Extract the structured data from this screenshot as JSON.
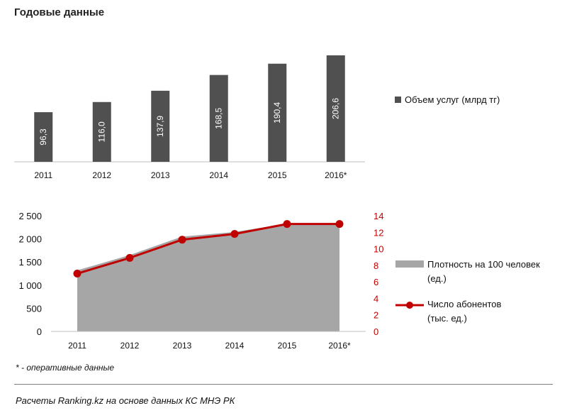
{
  "title": "Годовые данные",
  "colors": {
    "bar": "#505050",
    "area": "#a6a6a6",
    "line": "#c00000",
    "right_axis": "#c00000",
    "axis": "#bfbfbf"
  },
  "chart_data": [
    {
      "type": "bar",
      "categories": [
        "2011",
        "2012",
        "2013",
        "2014",
        "2015",
        "2016*"
      ],
      "series": [
        {
          "name": "Объем услуг (млрд тг)",
          "values": [
            96.3,
            116.0,
            137.9,
            168.5,
            190.4,
            206.6
          ],
          "value_labels": [
            "96,3",
            "116,0",
            "137,9",
            "168,5",
            "190,4",
            "206,6"
          ]
        }
      ],
      "ylim": [
        0,
        230
      ],
      "legend": "right"
    },
    {
      "type": "area",
      "categories": [
        "2011",
        "2012",
        "2013",
        "2014",
        "2015",
        "2016*"
      ],
      "left_axis": {
        "ylim": [
          0,
          2500
        ],
        "ticks": [
          0,
          500,
          1000,
          1500,
          2000,
          2500
        ],
        "tick_labels": [
          "0",
          "500",
          "1 000",
          "1 500",
          "2 000",
          "2 500"
        ]
      },
      "right_axis": {
        "ylim": [
          0,
          14
        ],
        "ticks": [
          0,
          2,
          4,
          6,
          8,
          10,
          12,
          14
        ],
        "tick_labels": [
          "0",
          "2",
          "4",
          "6",
          "8",
          "10",
          "12",
          "14"
        ]
      },
      "series": [
        {
          "name": "Плотность на 100 человек (ед.)",
          "legend_lines": [
            "Плотность на 100 человек",
            "(ед.)"
          ],
          "kind": "area",
          "axis": "left",
          "values": [
            1320,
            1650,
            2050,
            2150,
            2330,
            2330
          ]
        },
        {
          "name": "Число абонентов (тыс. ед.)",
          "legend_lines": [
            "Число абонентов",
            "(тыс. ед.)"
          ],
          "kind": "line",
          "axis": "right",
          "values": [
            7.0,
            8.9,
            11.1,
            11.8,
            13.0,
            13.0
          ]
        }
      ],
      "legend": "right"
    }
  ],
  "footnote": "* - оперативные данные",
  "source": "Расчеты Ranking.kz на основе данных КС МНЭ РК"
}
